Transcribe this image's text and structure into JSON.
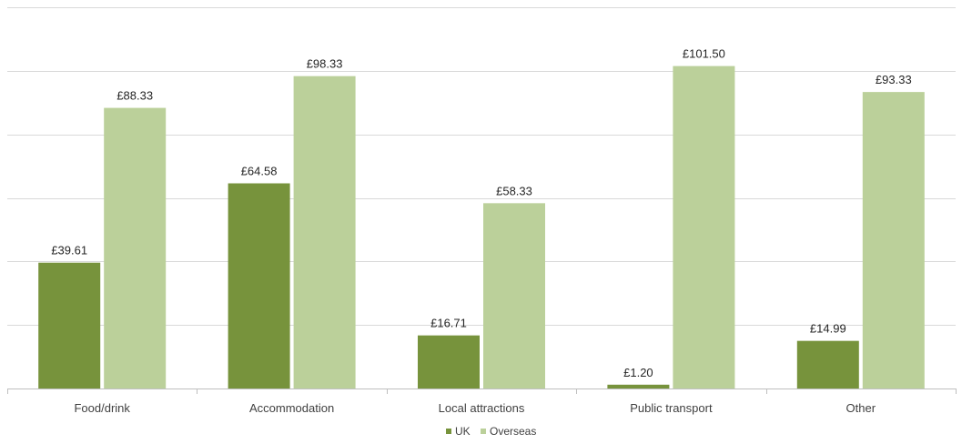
{
  "chart_data": {
    "type": "bar",
    "categories": [
      "Food/drink",
      "Accommodation",
      "Local attractions",
      "Public transport",
      "Other"
    ],
    "series": [
      {
        "name": "UK",
        "values": [
          39.61,
          64.58,
          16.71,
          1.2,
          14.99
        ],
        "labels": [
          "£39.61",
          "£64.58",
          "£16.71",
          "£1.20",
          "£14.99"
        ],
        "color": "#77933C"
      },
      {
        "name": "Overseas",
        "values": [
          88.33,
          98.33,
          58.33,
          101.5,
          93.33
        ],
        "labels": [
          "£88.33",
          "£98.33",
          "£58.33",
          "£101.50",
          "£93.33"
        ],
        "color": "#BBD09A"
      }
    ],
    "ylim": [
      0,
      120
    ],
    "grid": true,
    "legend_position": "bottom-center",
    "gridline_color": "#D9D9D9",
    "title": "",
    "xlabel": "",
    "ylabel": ""
  }
}
